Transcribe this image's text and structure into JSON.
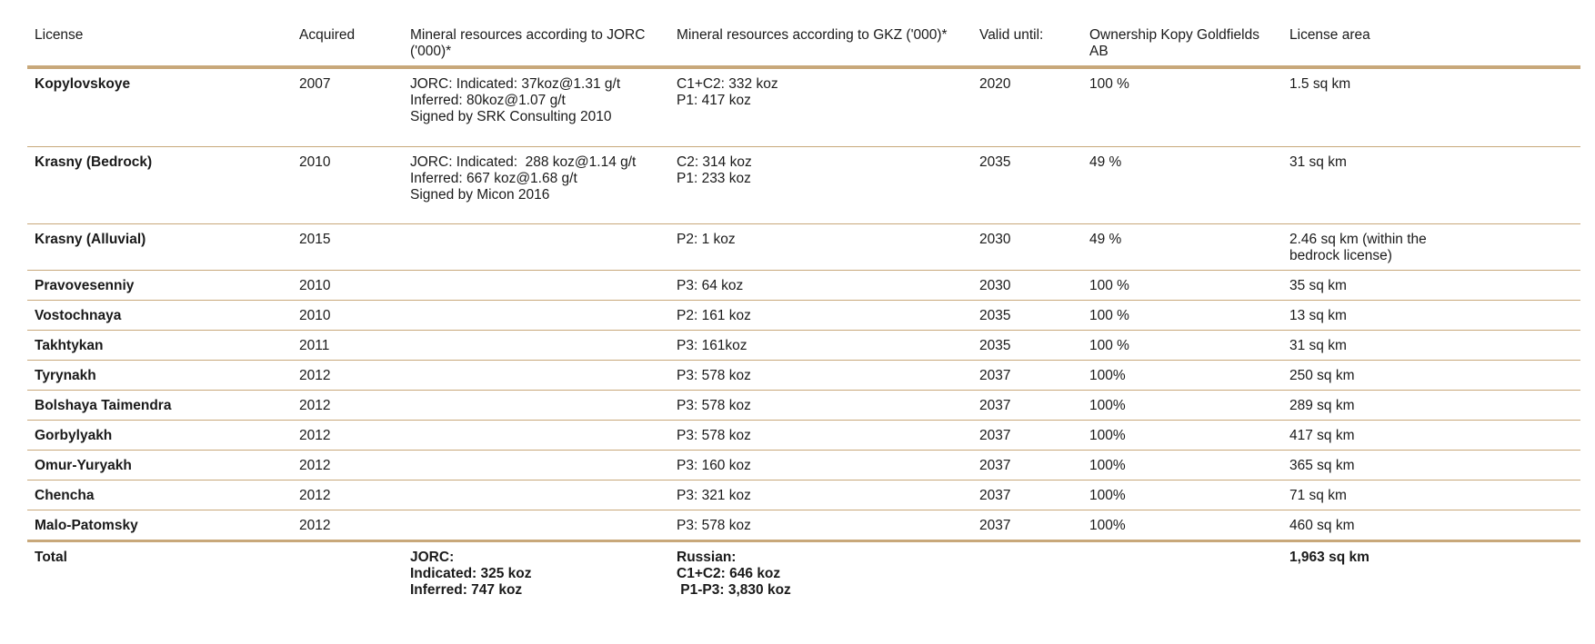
{
  "headers": [
    "License",
    "Acquired",
    "Mineral resources according to JORC ('000)*",
    "Mineral resources according to GKZ ('000)*",
    "Valid until:",
    "Ownership Kopy Goldfields AB",
    "License area"
  ],
  "rows": [
    {
      "license": "Kopylovskoye",
      "acquired": "2007",
      "jorc": [
        "JORC: Indicated: 37koz@1.31 g/t",
        "Inferred: 80koz@1.07 g/t",
        "Signed by SRK Consulting 2010"
      ],
      "gkz": [
        "C1+C2: 332 koz",
        "P1: 417 koz"
      ],
      "valid": "2020",
      "ownership": "100 %",
      "area": [
        "1.5 sq km"
      ]
    },
    {
      "license": "Krasny (Bedrock)",
      "acquired": "2010",
      "jorc": [
        "JORC: Indicated:  288 koz@1.14 g/t",
        "Inferred: 667 koz@1.68 g/t",
        "Signed by Micon 2016"
      ],
      "gkz": [
        "C2: 314 koz",
        "P1: 233 koz"
      ],
      "valid": "2035",
      "ownership": "49 %",
      "area": [
        "31 sq km"
      ]
    },
    {
      "license": "Krasny (Alluvial)",
      "acquired": "2015",
      "jorc": [],
      "gkz": [
        "P2: 1 koz"
      ],
      "valid": "2030",
      "ownership": "49 %",
      "area": [
        "2.46 sq km (within the",
        "bedrock license)"
      ]
    },
    {
      "license": "Pravovesenniy",
      "acquired": "2010",
      "jorc": [],
      "gkz": [
        "P3: 64 koz"
      ],
      "valid": "2030",
      "ownership": "100 %",
      "area": [
        "35 sq km"
      ]
    },
    {
      "license": "Vostochnaya",
      "acquired": "2010",
      "jorc": [],
      "gkz": [
        "P2: 161 koz"
      ],
      "valid": "2035",
      "ownership": "100 %",
      "area": [
        "13 sq km"
      ]
    },
    {
      "license": "Takhtykan",
      "acquired": "2011",
      "jorc": [],
      "gkz": [
        "P3: 161koz"
      ],
      "valid": "2035",
      "ownership": "100 %",
      "area": [
        "31 sq km"
      ]
    },
    {
      "license": "Tyrynakh",
      "acquired": "2012",
      "jorc": [],
      "gkz": [
        "P3: 578 koz"
      ],
      "valid": "2037",
      "ownership": "100%",
      "area": [
        "250 sq km"
      ]
    },
    {
      "license": "Bolshaya Taimendra",
      "acquired": "2012",
      "jorc": [],
      "gkz": [
        "P3: 578 koz"
      ],
      "valid": "2037",
      "ownership": "100%",
      "area": [
        "289 sq km"
      ]
    },
    {
      "license": "Gorbylyakh",
      "acquired": "2012",
      "jorc": [],
      "gkz": [
        "P3: 578 koz"
      ],
      "valid": "2037",
      "ownership": "100%",
      "area": [
        "417 sq km"
      ]
    },
    {
      "license": "Omur-Yuryakh",
      "acquired": "2012",
      "jorc": [],
      "gkz": [
        "P3: 160 koz"
      ],
      "valid": "2037",
      "ownership": "100%",
      "area": [
        "365 sq km"
      ]
    },
    {
      "license": "Chencha",
      "acquired": "2012",
      "jorc": [],
      "gkz": [
        "P3: 321 koz"
      ],
      "valid": "2037",
      "ownership": "100%",
      "area": [
        "71 sq km"
      ]
    },
    {
      "license": "Malo-Patomsky",
      "acquired": "2012",
      "jorc": [],
      "gkz": [
        "P3: 578 koz"
      ],
      "valid": "2037",
      "ownership": "100%",
      "area": [
        "460 sq km"
      ]
    }
  ],
  "total": {
    "label": "Total",
    "jorc": [
      "JORC:",
      "Indicated: 325 koz",
      "Inferred: 747 koz"
    ],
    "gkz": [
      "Russian:",
      "C1+C2: 646 koz",
      " P1-P3: 3,830 koz"
    ],
    "area": "1,963 sq km"
  },
  "colors": {
    "rule": "#c8a87a",
    "text": "#1a1a1a"
  }
}
